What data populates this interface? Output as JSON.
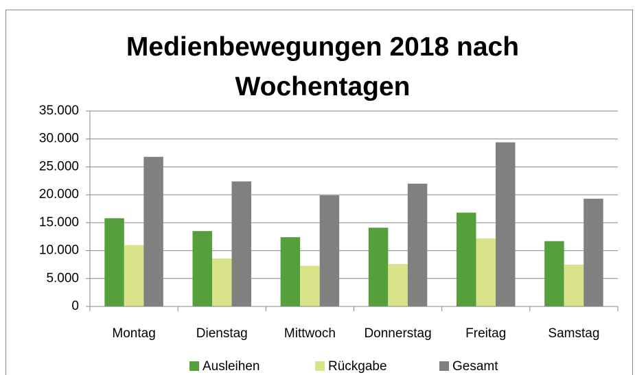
{
  "chart_data": {
    "type": "bar",
    "title": "Medienbewegungen 2018 nach Wochentagen",
    "categories": [
      "Montag",
      "Dienstag",
      "Mittwoch",
      "Donnerstag",
      "Freitag",
      "Samstag"
    ],
    "series": [
      {
        "name": "Ausleihen",
        "color": "#55a03c",
        "values": [
          15800,
          13500,
          12400,
          14100,
          16800,
          11700
        ]
      },
      {
        "name": "Rückgabe",
        "color": "#d9e38a",
        "values": [
          11000,
          8600,
          7300,
          7600,
          12200,
          7500
        ]
      },
      {
        "name": "Gesamt",
        "color": "#808080",
        "values": [
          26800,
          22400,
          19900,
          22000,
          29400,
          19300
        ]
      }
    ],
    "ylim": [
      0,
      35000
    ],
    "yticks": [
      0,
      {
        "value": 5000,
        "label": "5.000"
      },
      {
        "value": 10000,
        "label": "10.000"
      },
      {
        "value": 15000,
        "label": "15.000"
      },
      {
        "value": 20000,
        "label": "20.000"
      },
      {
        "value": 25000,
        "label": "25.000"
      },
      {
        "value": 30000,
        "label": "30.000"
      },
      {
        "value": 35000,
        "label": "35.000"
      }
    ],
    "grid": true,
    "legend": "bottom"
  }
}
